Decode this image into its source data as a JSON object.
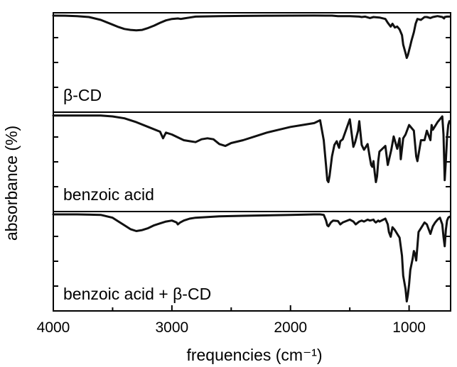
{
  "chart_data": {
    "type": "line",
    "xlabel": "frequencies (cm⁻¹)",
    "ylabel": "absorbance (%)",
    "xlim": [
      4000,
      650
    ],
    "x_reversed": true,
    "x_ticks": [
      4000,
      3000,
      2000,
      1000
    ],
    "x_tick_labels": [
      "4000",
      "3000",
      "2000",
      "1000"
    ],
    "grid": false,
    "legend": "none",
    "panels": [
      {
        "label": "β-CD",
        "series": [
          {
            "x": [
              4000,
              3900,
              3800,
              3700,
              3600,
              3500,
              3450,
              3400,
              3350,
              3300,
              3250,
              3200,
              3150,
              3100,
              3050,
              3000,
              2950,
              2925,
              2900,
              2850,
              2800,
              2600,
              2400,
              2200,
              2000,
              1800,
              1700,
              1650,
              1600,
              1500,
              1420,
              1400,
              1370,
              1330,
              1300,
              1250,
              1200,
              1180,
              1155,
              1140,
              1120,
              1100,
              1080,
              1060,
              1050,
              1030,
              1020,
              1010,
              1000,
              990,
              980,
              960,
              945,
              930,
              900,
              870,
              850,
              820,
              800,
              760,
              720,
              705,
              700,
              680,
              660
            ],
            "y": [
              1.5,
              1.6,
              2,
              3,
              6,
              11,
              13.5,
              15.5,
              16.5,
              17,
              16.5,
              14.5,
              12,
              9,
              6.5,
              5,
              4.5,
              5,
              4.5,
              3.5,
              2.5,
              2,
              1.8,
              1.6,
              1.5,
              1.4,
              1.5,
              1.5,
              2,
              2,
              2.5,
              3,
              2.5,
              4,
              3,
              3.5,
              5,
              9,
              13,
              10,
              14,
              13,
              16,
              22,
              32,
              41,
              46,
              43,
              38,
              33,
              28,
              19,
              10,
              5,
              6,
              3,
              3,
              4,
              3,
              2,
              3,
              4.5,
              3,
              2.5,
              2.5
            ]
          }
        ]
      },
      {
        "label": "benzoic acid",
        "series": [
          {
            "x": [
              4000,
              3800,
              3600,
              3500,
              3400,
              3300,
              3200,
              3100,
              3075,
              3050,
              3000,
              2950,
              2900,
              2850,
              2800,
              2750,
              2700,
              2650,
              2600,
              2550,
              2500,
              2400,
              2300,
              2200,
              2100,
              2000,
              1900,
              1800,
              1750,
              1720,
              1700,
              1690,
              1680,
              1670,
              1650,
              1630,
              1610,
              1600,
              1590,
              1580,
              1560,
              1500,
              1470,
              1455,
              1430,
              1420,
              1400,
              1380,
              1350,
              1330,
              1320,
              1310,
              1300,
              1290,
              1280,
              1270,
              1260,
              1250,
              1200,
              1180,
              1150,
              1130,
              1100,
              1080,
              1070,
              1050,
              1030,
              1000,
              960,
              940,
              930,
              900,
              870,
              850,
              820,
              810,
              800,
              760,
              720,
              710,
              700,
              690,
              680,
              670,
              660
            ],
            "y": [
              2,
              2,
              2,
              3,
              5,
              9,
              14,
              19,
              26,
              20,
              22,
              25,
              28,
              29,
              30,
              27,
              26,
              27,
              32,
              34,
              31,
              28,
              24,
              20,
              17,
              14,
              12,
              10,
              7,
              28,
              55,
              70,
              72,
              65,
              45,
              33,
              29,
              33,
              36,
              29,
              27,
              6,
              35,
              30,
              18,
              8,
              33,
              38,
              32,
              47,
              54,
              56,
              50,
              62,
              72,
              66,
              50,
              40,
              34,
              54,
              38,
              24,
              37,
              26,
              48,
              26,
              22,
              12,
              18,
              45,
              50,
              28,
              28,
              18,
              28,
              12,
              17,
              9,
              3,
              22,
              70,
              50,
              25,
              12,
              8
            ]
          }
        ]
      },
      {
        "label": "benzoic acid + β-CD",
        "series": [
          {
            "x": [
              4000,
              3800,
              3600,
              3500,
              3450,
              3400,
              3350,
              3300,
              3250,
              3200,
              3150,
              3100,
              3050,
              3000,
              2960,
              2950,
              2930,
              2900,
              2850,
              2800,
              2600,
              2400,
              2200,
              2000,
              1800,
              1750,
              1720,
              1700,
              1690,
              1680,
              1660,
              1640,
              1600,
              1580,
              1560,
              1500,
              1470,
              1450,
              1420,
              1400,
              1380,
              1350,
              1330,
              1300,
              1290,
              1280,
              1260,
              1250,
              1200,
              1180,
              1170,
              1155,
              1140,
              1120,
              1100,
              1080,
              1060,
              1050,
              1030,
              1020,
              1010,
              1000,
              990,
              970,
              960,
              950,
              940,
              930,
              920,
              900,
              870,
              850,
              820,
              810,
              800,
              780,
              760,
              740,
              720,
              710,
              700,
              690,
              680,
              670,
              660
            ],
            "y": [
              1.5,
              1.5,
              2,
              5,
              9,
              13,
              17,
              19,
              18,
              16,
              13,
              11,
              9,
              8,
              10,
              12,
              10,
              8,
              6,
              5,
              3.5,
              3,
              2.5,
              2,
              1.5,
              1.5,
              2,
              8,
              13,
              14,
              10,
              8,
              8.5,
              12,
              10,
              7,
              9,
              12,
              9,
              8,
              9,
              7,
              8,
              7,
              9,
              10,
              8,
              9,
              6,
              12,
              20,
              25,
              15,
              18,
              22,
              26,
              45,
              66,
              80,
              93,
              86,
              75,
              60,
              48,
              40,
              43,
              50,
              35,
              20,
              16,
              10,
              12,
              22,
              18,
              14,
              10,
              7,
              5,
              12,
              25,
              35,
              18,
              8,
              5,
              4
            ]
          }
        ]
      }
    ]
  }
}
